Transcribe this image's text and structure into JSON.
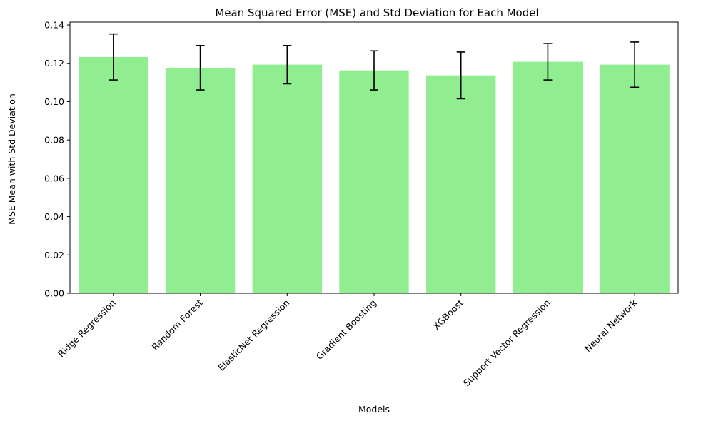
{
  "chart_data": {
    "type": "bar",
    "title": "Mean Squared Error (MSE) and Std Deviation for Each Model",
    "xlabel": "Models",
    "ylabel": "MSE Mean with Std Deviation",
    "categories": [
      "Ridge Regression",
      "Random Forest",
      "ElasticNet Regression",
      "Gradient Boosting",
      "XGBoost",
      "Support Vector Regression",
      "Neural Network"
    ],
    "values": [
      0.1233,
      0.1177,
      0.1193,
      0.1163,
      0.1137,
      0.1208,
      0.1193
    ],
    "errors": [
      0.012,
      0.0116,
      0.01,
      0.0102,
      0.0122,
      0.0095,
      0.0118
    ],
    "ylim": [
      0.0,
      0.1415
    ],
    "yticks": [
      0.0,
      0.02,
      0.04,
      0.06,
      0.08,
      0.1,
      0.12,
      0.14
    ],
    "ytick_labels": [
      "0.00",
      "0.02",
      "0.04",
      "0.06",
      "0.08",
      "0.10",
      "0.12",
      "0.14"
    ],
    "grid": false,
    "colors": {
      "bar": "#90ee90",
      "error_bar": "#000000",
      "axes": "#000000"
    }
  }
}
